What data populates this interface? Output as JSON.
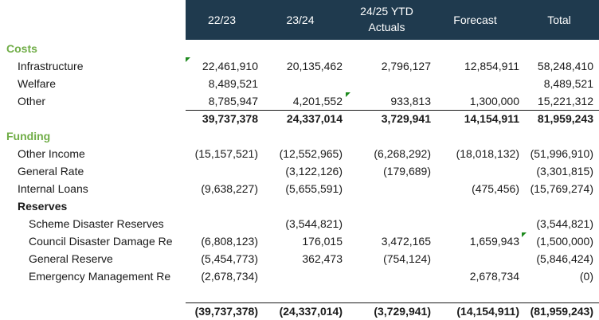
{
  "columns": [
    "22/23",
    "23/24",
    "24/25 YTD",
    "Actuals",
    "Forecast",
    "Total"
  ],
  "sections": {
    "costs": "Costs",
    "funding": "Funding",
    "reserves": "Reserves"
  },
  "rows": {
    "infrastructure": {
      "label": "Infrastructure",
      "v": [
        "22,461,910",
        "20,135,462",
        "2,796,127",
        "12,854,911",
        "58,248,410"
      ]
    },
    "welfare": {
      "label": "Welfare",
      "v": [
        "8,489,521",
        "",
        "",
        "",
        "8,489,521"
      ]
    },
    "other": {
      "label": "Other",
      "v": [
        "8,785,947",
        "4,201,552",
        "933,813",
        "1,300,000",
        "15,221,312"
      ]
    },
    "costs_total": {
      "v": [
        "39,737,378",
        "24,337,014",
        "3,729,941",
        "14,154,911",
        "81,959,243"
      ]
    },
    "other_income": {
      "label": "Other Income",
      "v": [
        "(15,157,521)",
        "(12,552,965)",
        "(6,268,292)",
        "(18,018,132)",
        "(51,996,910)"
      ]
    },
    "general_rate": {
      "label": "General Rate",
      "v": [
        "",
        "(3,122,126)",
        "(179,689)",
        "",
        "(3,301,815)"
      ]
    },
    "internal_loans": {
      "label": "Internal Loans",
      "v": [
        "(9,638,227)",
        "(5,655,591)",
        "",
        "(475,456)",
        "(15,769,274)"
      ]
    },
    "scheme_reserves": {
      "label": "Scheme Disaster Reserves",
      "v": [
        "",
        "(3,544,821)",
        "",
        "",
        "(3,544,821)"
      ]
    },
    "council_reserves": {
      "label": "Council Disaster Damage Re",
      "v": [
        "(6,808,123)",
        "176,015",
        "3,472,165",
        "1,659,943",
        "(1,500,000)"
      ]
    },
    "general_reserve": {
      "label": "General Reserve",
      "v": [
        "(5,454,773)",
        "362,473",
        "(754,124)",
        "",
        "(5,846,424)"
      ]
    },
    "emergency_reserve": {
      "label": "Emergency Management Re",
      "v": [
        "(2,678,734)",
        "",
        "",
        "2,678,734",
        "(0)"
      ]
    },
    "funding_total": {
      "v": [
        "(39,737,378)",
        "(24,337,014)",
        "(3,729,941)",
        "(14,154,911)",
        "(81,959,243)"
      ]
    }
  },
  "colors": {
    "header_bg": "#1f3a4e",
    "section_text": "#70ad47",
    "comment_marker": "#1e8a1e"
  }
}
